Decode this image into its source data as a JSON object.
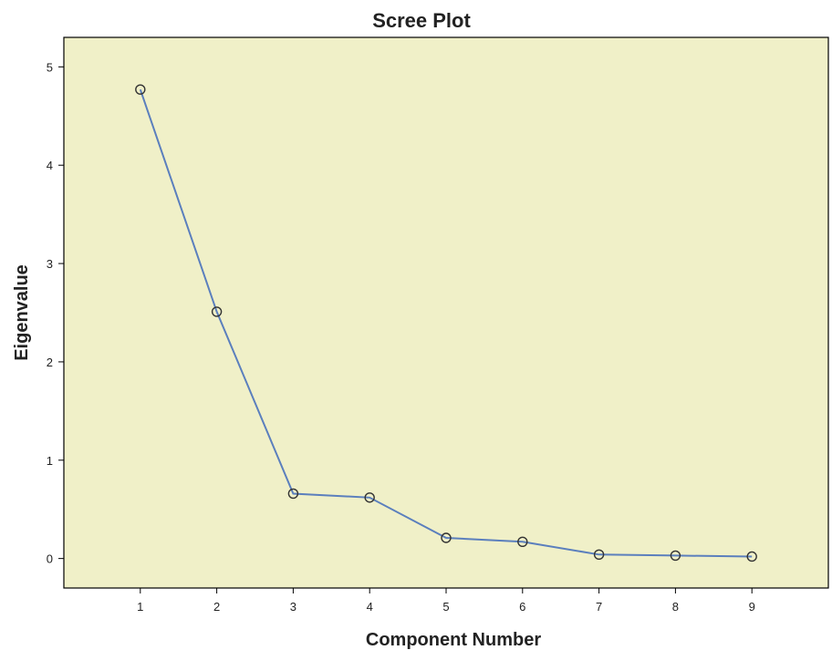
{
  "chart_data": {
    "type": "line",
    "title": "Scree Plot",
    "xlabel": "Component Number",
    "ylabel": "Eigenvalue",
    "x": [
      1,
      2,
      3,
      4,
      5,
      6,
      7,
      8,
      9
    ],
    "series": [
      {
        "values": [
          4.77,
          2.51,
          0.66,
          0.62,
          0.21,
          0.17,
          0.04,
          0.03,
          0.02
        ],
        "color": "#5b7fbd",
        "marker": "open-circle"
      }
    ],
    "xlim": [
      0,
      10
    ],
    "ylim": [
      -0.3,
      5.3
    ],
    "xticks": [
      "1",
      "2",
      "3",
      "4",
      "5",
      "6",
      "7",
      "8",
      "9"
    ],
    "yticks": [
      "0",
      "1",
      "2",
      "3",
      "4",
      "5"
    ],
    "grid": false,
    "legend": "none",
    "plot_background": "#f0f0c8"
  }
}
